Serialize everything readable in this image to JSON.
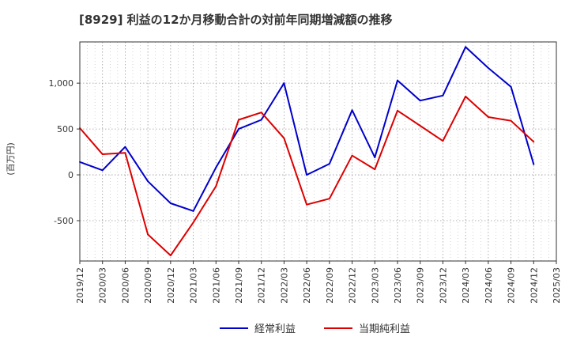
{
  "chart_data": {
    "type": "line",
    "title": "[8929]  利益の12か月移動合計の対前年同期増減額の推移",
    "ylabel": "(百万円)",
    "xlabel": "",
    "categories": [
      "2019/12",
      "2020/03",
      "2020/06",
      "2020/09",
      "2020/12",
      "2021/03",
      "2021/06",
      "2021/09",
      "2021/12",
      "2022/03",
      "2022/06",
      "2022/09",
      "2022/12",
      "2023/03",
      "2023/06",
      "2023/09",
      "2023/12",
      "2024/03",
      "2024/06",
      "2024/09",
      "2024/12",
      "2025/03"
    ],
    "ylim": [
      -940,
      1450
    ],
    "yticks": [
      -500,
      0,
      500,
      1000
    ],
    "ytick_labels": [
      "-500",
      "0",
      "500",
      "1,000"
    ],
    "grid": true,
    "legend_position": "bottom-center",
    "series": [
      {
        "name": "経常利益",
        "color": "#0000cc",
        "values": [
          140,
          50,
          305,
          -70,
          -310,
          -395,
          80,
          500,
          600,
          1000,
          0,
          120,
          705,
          190,
          1030,
          810,
          865,
          1395,
          1165,
          960,
          115,
          null
        ]
      },
      {
        "name": "当期純利益",
        "color": "#dd0000",
        "values": [
          510,
          225,
          240,
          -650,
          -880,
          -520,
          -125,
          600,
          680,
          400,
          -325,
          -260,
          210,
          60,
          700,
          535,
          370,
          855,
          630,
          590,
          360,
          null
        ]
      }
    ]
  }
}
